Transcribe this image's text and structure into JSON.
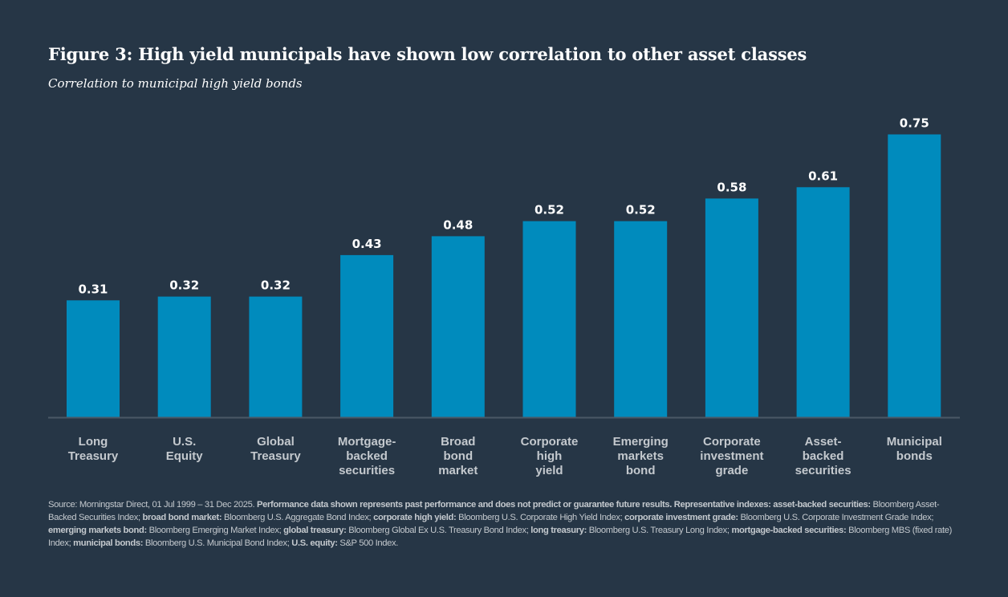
{
  "header": {
    "title": "Figure 3: High yield municipals have shown low correlation to other asset classes",
    "subtitle": "Correlation to municipal high yield bonds"
  },
  "colors": {
    "background": "#263646",
    "bar": "#008bbd",
    "axis": "#4a5866",
    "value_label": "#ffffff",
    "category_label": "#c4c9ce"
  },
  "chart_data": {
    "type": "bar",
    "title": "Figure 3: High yield municipals have shown low correlation to other asset classes",
    "subtitle": "Correlation to municipal high yield bonds",
    "xlabel": "",
    "ylabel": "Correlation to municipal high yield bonds",
    "ylim": [
      0,
      0.8
    ],
    "grid": false,
    "legend": "none",
    "categories": [
      "Long Treasury",
      "U.S. Equity",
      "Global Treasury",
      "Mortgage-backed securities",
      "Broad bond market",
      "Corporate high yield",
      "Emerging markets bond",
      "Corporate investment grade",
      "Asset-backed securities",
      "Municipal bonds"
    ],
    "category_lines": [
      [
        "Long",
        "Treasury"
      ],
      [
        "U.S.",
        "Equity"
      ],
      [
        "Global",
        "Treasury"
      ],
      [
        "Mortgage-",
        "backed",
        "securities"
      ],
      [
        "Broad",
        "bond",
        "market"
      ],
      [
        "Corporate",
        "high",
        "yield"
      ],
      [
        "Emerging",
        "markets",
        "bond"
      ],
      [
        "Corporate",
        "investment",
        "grade"
      ],
      [
        "Asset-",
        "backed",
        "securities"
      ],
      [
        "Municipal",
        "bonds"
      ]
    ],
    "values": [
      0.31,
      0.32,
      0.32,
      0.43,
      0.48,
      0.52,
      0.52,
      0.58,
      0.61,
      0.75
    ],
    "value_labels": [
      "0.31",
      "0.32",
      "0.32",
      "0.43",
      "0.48",
      "0.52",
      "0.52",
      "0.58",
      "0.61",
      "0.75"
    ]
  },
  "footnote": {
    "segments": [
      {
        "text": "Source: Morningstar Direct, 01 Jul 1999 – 31 Dec 2025. ",
        "bold": false
      },
      {
        "text": "Performance data shown represents past performance and does not predict or guarantee future results. Representative indexes: asset-backed securities:",
        "bold": true
      },
      {
        "text": " Bloomberg Asset-Backed Securities Index; ",
        "bold": false
      },
      {
        "text": "broad bond market:",
        "bold": true
      },
      {
        "text": " Bloomberg U.S. Aggregate Bond Index; ",
        "bold": false
      },
      {
        "text": "corporate high yield:",
        "bold": true
      },
      {
        "text": " Bloomberg U.S. Corporate High Yield Index; ",
        "bold": false
      },
      {
        "text": "corporate investment grade:",
        "bold": true
      },
      {
        "text": " Bloomberg U.S. Corporate Investment Grade Index; ",
        "bold": false
      },
      {
        "text": "emerging markets bond:",
        "bold": true
      },
      {
        "text": " Bloomberg Emerging Market Index; ",
        "bold": false
      },
      {
        "text": "global treasury:",
        "bold": true
      },
      {
        "text": " Bloomberg Global Ex U.S. Treasury Bond Index; ",
        "bold": false
      },
      {
        "text": "long treasury:",
        "bold": true
      },
      {
        "text": " Bloomberg U.S. Treasury Long Index; ",
        "bold": false
      },
      {
        "text": "mortgage-backed securities:",
        "bold": true
      },
      {
        "text": " Bloomberg MBS (fixed rate) Index; ",
        "bold": false
      },
      {
        "text": "municipal bonds:",
        "bold": true
      },
      {
        "text": " Bloomberg U.S. Municipal Bond Index; ",
        "bold": false
      },
      {
        "text": "U.S. equity:",
        "bold": true
      },
      {
        "text": " S&P 500 Index.",
        "bold": false
      }
    ]
  }
}
